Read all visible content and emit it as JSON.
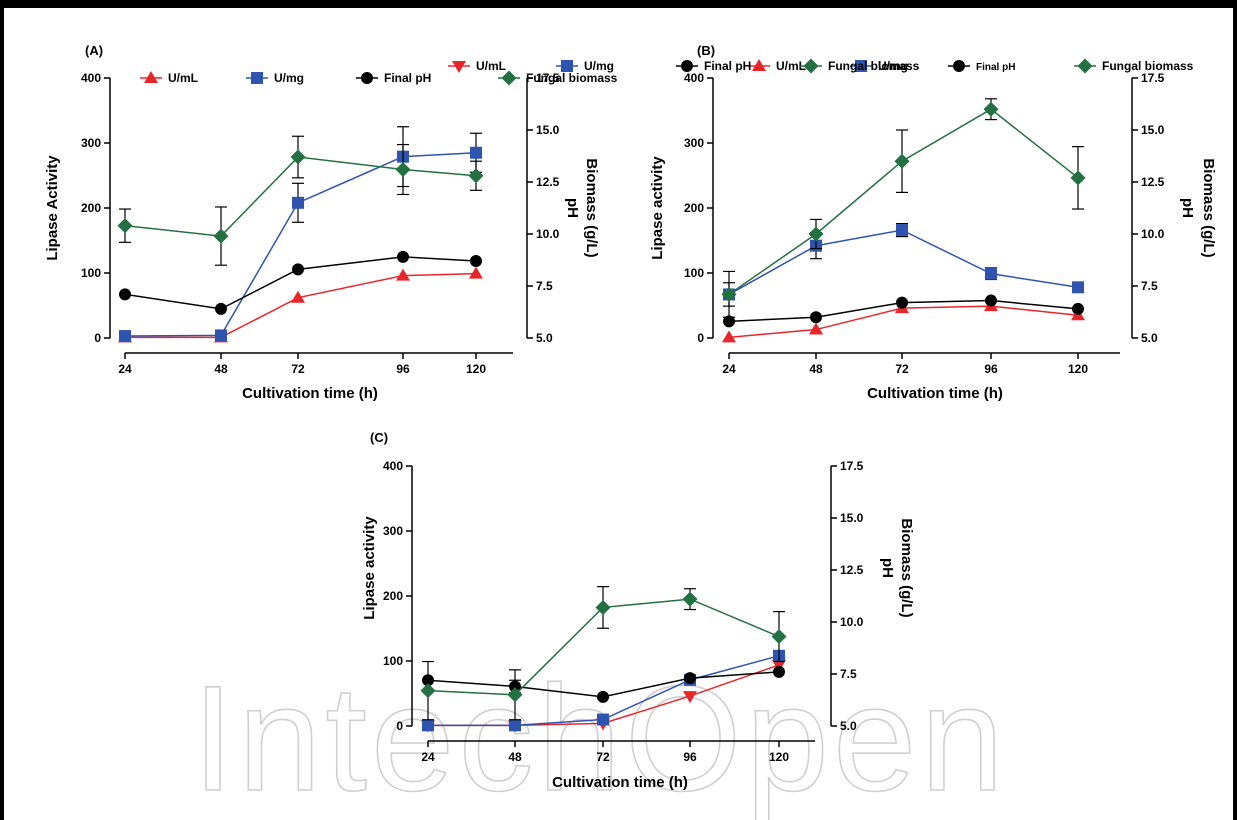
{
  "watermark": "IntechOpen",
  "colors": {
    "red": "#e8262a",
    "blue": "#2e54b0",
    "black": "#000000",
    "green": "#237040"
  },
  "chart_data": [
    {
      "type": "line",
      "panel_label": "(A)",
      "xlabel": "Cultivation time (h)",
      "ylabel": "Lipase Activity",
      "y2label_top": "Biomass (g/L)",
      "y2label_bottom": "pH",
      "categories": [
        "24",
        "48",
        "72",
        "96",
        "120"
      ],
      "x": [
        24,
        48,
        72,
        96,
        120
      ],
      "ylim": [
        0,
        400
      ],
      "yticks": [
        "0",
        "100",
        "200",
        "300",
        "400"
      ],
      "y2lim": [
        5.0,
        17.5
      ],
      "y2ticks": [
        "5.0",
        "7.5",
        "10.0",
        "12.5",
        "15.0",
        "17.5"
      ],
      "legend_position": "top",
      "series": [
        {
          "name": "U/mL",
          "marker": "triangle-up",
          "color": "#e8262a",
          "axis": "left",
          "values": [
            1,
            1,
            62,
            96,
            99
          ],
          "errors": [
            0,
            0,
            0,
            0,
            0
          ]
        },
        {
          "name": "U/mg",
          "marker": "square",
          "color": "#2e54b0",
          "axis": "left",
          "values": [
            3,
            4,
            208,
            279,
            285
          ],
          "errors": [
            0,
            0,
            30,
            46,
            30
          ]
        },
        {
          "name": "Final pH",
          "marker": "circle",
          "color": "#000000",
          "axis": "right",
          "values": [
            7.1,
            6.4,
            8.3,
            8.9,
            8.7
          ],
          "errors": [
            0,
            0,
            0,
            0,
            0
          ]
        },
        {
          "name": "Fungal biomass",
          "marker": "diamond",
          "color": "#237040",
          "axis": "right",
          "values": [
            10.4,
            9.9,
            13.7,
            13.1,
            12.8
          ],
          "errors": [
            0.8,
            1.4,
            1.0,
            1.2,
            0.7
          ]
        }
      ]
    },
    {
      "type": "line",
      "panel_label": "(B)",
      "xlabel": "Cultivation time (h)",
      "ylabel": "Lipase activity",
      "y2label_top": "Biomass (g/L)",
      "y2label_bottom": "pH",
      "categories": [
        "24",
        "48",
        "72",
        "96",
        "120"
      ],
      "x": [
        24,
        48,
        72,
        96,
        120
      ],
      "ylim": [
        0,
        400
      ],
      "yticks": [
        "0",
        "100",
        "200",
        "300",
        "400"
      ],
      "y2lim": [
        5.0,
        17.5
      ],
      "y2ticks": [
        "5.0",
        "7.5",
        "10.0",
        "12.5",
        "15.0",
        "17.5"
      ],
      "legend_position": "top",
      "series": [
        {
          "name": "U/mL",
          "marker": "triangle-up",
          "color": "#e8262a",
          "axis": "left",
          "values": [
            1,
            13,
            46,
            49,
            35
          ],
          "errors": [
            0,
            0,
            0,
            0,
            0
          ]
        },
        {
          "name": "U/mg",
          "marker": "square",
          "color": "#2e54b0",
          "axis": "left",
          "values": [
            67,
            142,
            166,
            99,
            78
          ],
          "errors": [
            18,
            20,
            10,
            9,
            7
          ]
        },
        {
          "name": "Final pH",
          "marker": "circle",
          "color": "#000000",
          "axis": "right",
          "values": [
            5.8,
            6.0,
            6.7,
            6.8,
            6.4
          ],
          "errors": [
            0,
            0,
            0,
            0,
            0
          ]
        },
        {
          "name": "Fungal biomass",
          "marker": "diamond",
          "color": "#237040",
          "axis": "right",
          "values": [
            7.1,
            10.0,
            13.5,
            16.0,
            12.7
          ],
          "errors": [
            1.1,
            0.7,
            1.5,
            0.5,
            1.5
          ]
        }
      ]
    },
    {
      "type": "line",
      "panel_label": "(C)",
      "xlabel": "Cultivation time (h)",
      "ylabel": "Lipase activity",
      "y2label_top": "Biomass (g/L)",
      "y2label_bottom": "pH",
      "categories": [
        "24",
        "48",
        "72",
        "96",
        "120"
      ],
      "x": [
        24,
        48,
        72,
        96,
        120
      ],
      "ylim": [
        0,
        400
      ],
      "yticks": [
        "0",
        "100",
        "200",
        "300",
        "400"
      ],
      "y2lim": [
        5.0,
        17.5
      ],
      "y2ticks": [
        "5.0",
        "7.5",
        "10.0",
        "12.5",
        "15.0",
        "17.5"
      ],
      "legend_position": "top",
      "series": [
        {
          "name": "U/mL",
          "marker": "triangle-down",
          "color": "#e8262a",
          "axis": "left",
          "values": [
            1,
            1,
            4,
            46,
            94
          ],
          "errors": [
            0,
            0,
            0,
            0,
            0
          ]
        },
        {
          "name": "U/mg",
          "marker": "square",
          "color": "#2e54b0",
          "axis": "left",
          "values": [
            1,
            1,
            10,
            71,
            108
          ],
          "errors": [
            0,
            0,
            0,
            0,
            0
          ]
        },
        {
          "name": "Final pH",
          "marker": "circle",
          "color": "#000000",
          "axis": "right",
          "values": [
            7.2,
            6.9,
            6.4,
            7.3,
            7.6
          ],
          "errors": [
            0,
            0.3,
            0,
            0,
            0
          ]
        },
        {
          "name": "Fungal biomass",
          "marker": "diamond",
          "color": "#237040",
          "axis": "right",
          "values": [
            6.7,
            6.5,
            10.7,
            11.1,
            9.3
          ],
          "errors": [
            1.4,
            1.2,
            1.0,
            0.5,
            1.2
          ]
        }
      ]
    }
  ]
}
